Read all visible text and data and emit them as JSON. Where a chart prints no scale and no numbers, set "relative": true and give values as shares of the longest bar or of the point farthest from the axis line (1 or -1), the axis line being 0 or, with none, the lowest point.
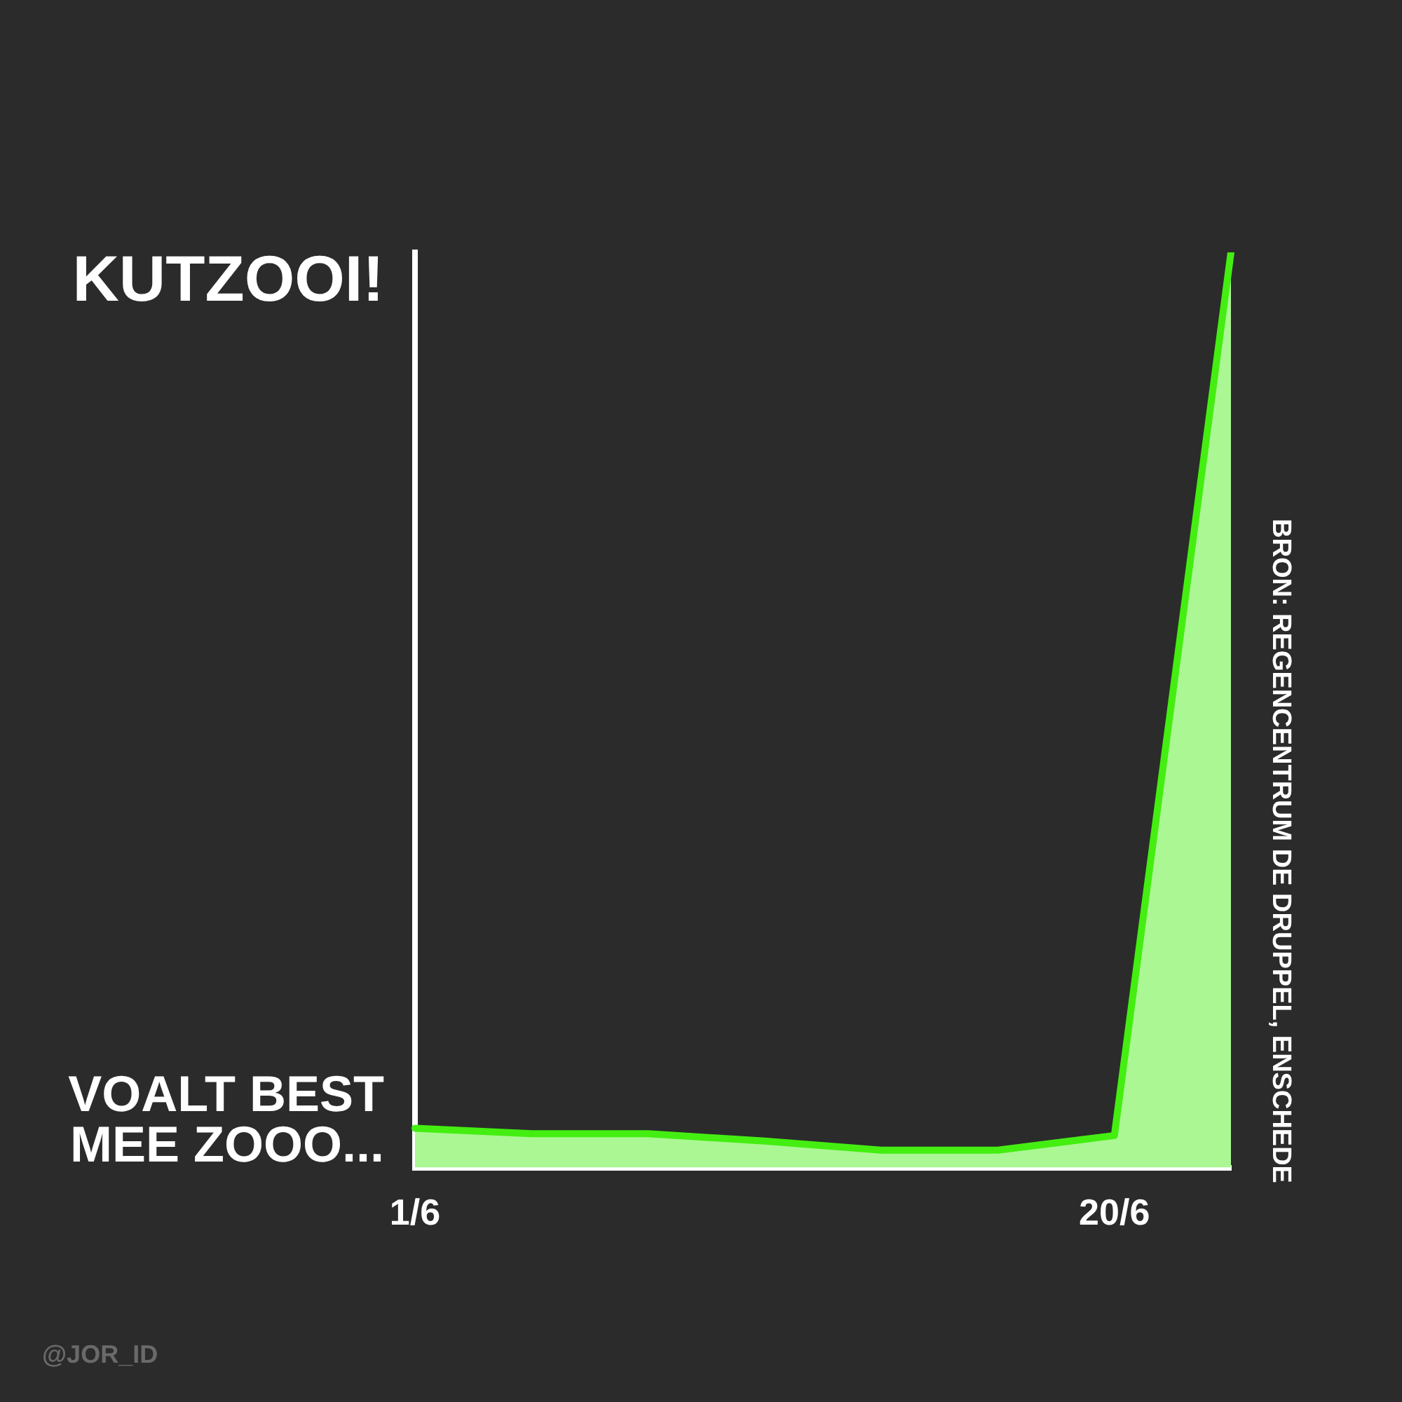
{
  "chart_data": {
    "type": "area",
    "relative": true,
    "categories": [
      "1/6",
      null,
      null,
      null,
      null,
      null,
      "20/6",
      null
    ],
    "series": [
      {
        "color": "#44ee11",
        "values": [
          0.043,
          0.037,
          0.037,
          0.029,
          0.019,
          0.019,
          0.035,
          1
        ]
      }
    ],
    "grid": false,
    "legend": false,
    "marker": "none",
    "annotations": [
      "KUTZOOI!",
      "VOALT BEST MEE ZOOO...",
      "BRON: REGENCENTRUM DE DRUPPEL, ENSCHEDE",
      "@JOR_ID"
    ]
  }
}
